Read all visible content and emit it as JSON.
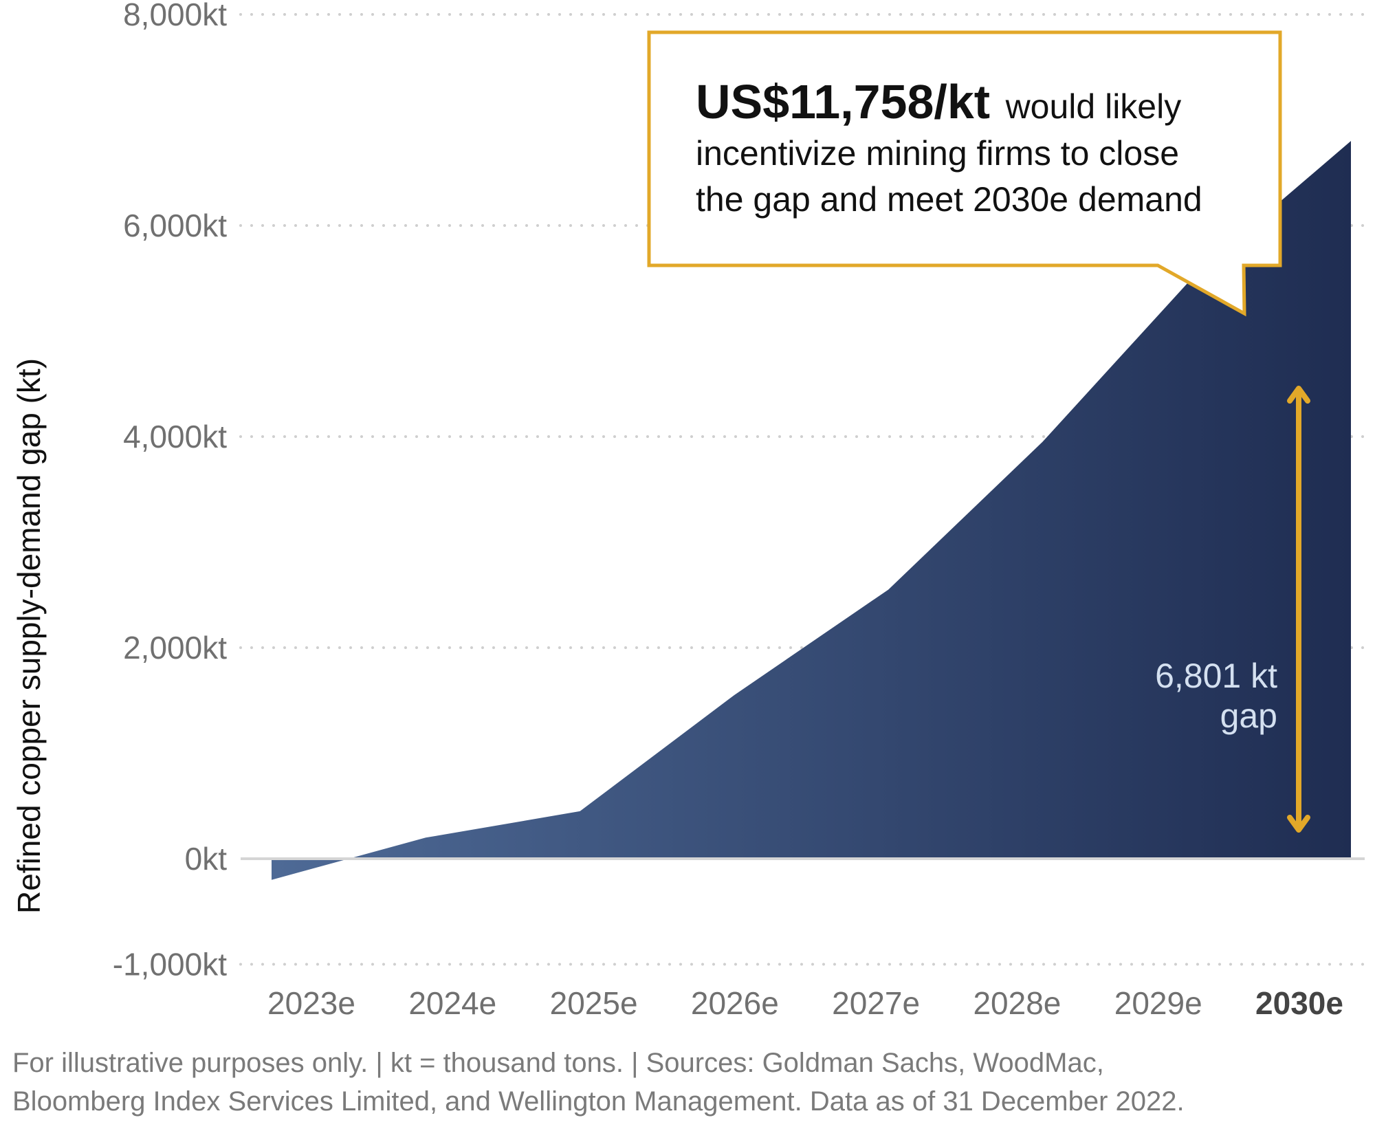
{
  "chart_data": {
    "type": "area",
    "title": "",
    "ylabel": "Refined copper supply-demand gap (kt)",
    "xlabel": "",
    "categories": [
      "2023e",
      "2024e",
      "2025e",
      "2026e",
      "2027e",
      "2028e",
      "2029e",
      "2030e"
    ],
    "highlight_category": "2030e",
    "series": [
      {
        "values": [
          -200,
          200,
          450,
          1550,
          2550,
          3950,
          5550,
          6801
        ]
      }
    ],
    "ylim": [
      -1000,
      8000
    ],
    "yticks": [
      {
        "value": 8000,
        "label": "8,000kt"
      },
      {
        "value": 6000,
        "label": "6,000kt"
      },
      {
        "value": 4000,
        "label": "4,000kt"
      },
      {
        "value": 2000,
        "label": "2,000kt"
      },
      {
        "value": 0,
        "label": "0kt"
      },
      {
        "value": -1000,
        "label": "-1,000kt"
      }
    ],
    "grid": "horizontal-dotted",
    "gap_annotation": {
      "line1": "6,801 kt",
      "line2": "gap",
      "from": 0,
      "to": 6801,
      "x": "2030e"
    },
    "callout": {
      "bold": "US$11,758/kt",
      "line1_rest": "would likely",
      "line2": "incentivize mining firms to close",
      "line3": "the gap and meet 2030e demand"
    },
    "colors": {
      "area_start": "#4e6a96",
      "area_end": "#1f2d52",
      "callout_border": "#e2a829",
      "arrow": "#e2a829",
      "gap_text": "#d4e0f0",
      "grid": "#cfcfcf",
      "tick_text": "#707070",
      "ylabel_text": "#111111",
      "highlight_text": "#444444"
    }
  },
  "footnote": {
    "line1": "For illustrative purposes only. |  kt = thousand tons. | Sources: Goldman Sachs, WoodMac,",
    "line2": "Bloomberg Index Services Limited, and Wellington Management. Data as of 31 December 2022."
  }
}
